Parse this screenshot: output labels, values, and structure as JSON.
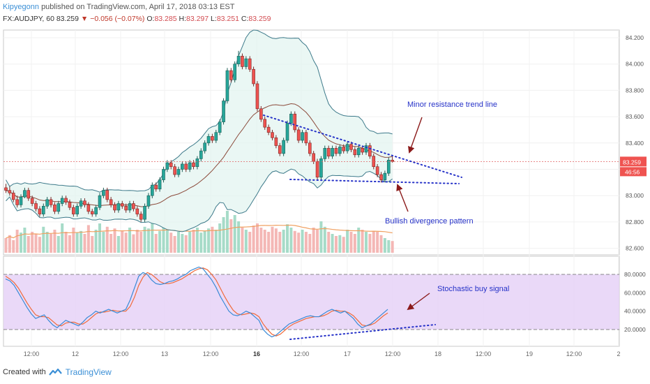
{
  "header": {
    "author": "Kipyegonn",
    "published": "published on TradingView.com, April 17, 2018 03:13 EST",
    "symbol": "FX:AUDJPY, 60",
    "last": "83.259",
    "change": "▼ −0.056 (−0.07%)",
    "o_label": "O:",
    "o": "83.285",
    "h_label": "H:",
    "h": "83.297",
    "l_label": "L:",
    "l": "83.251",
    "c_label": "C:",
    "c": "83.259"
  },
  "footer": {
    "created": "Created with",
    "brand": "TradingView"
  },
  "colors": {
    "up": "#26a69a",
    "down": "#ef5350",
    "bb_fill": "#e1f4ef",
    "stoch_fill": "#e6d2f7",
    "ann": "#2632c8",
    "arrow": "#8b1a1a"
  },
  "chart_data": [
    {
      "type": "candlestick",
      "symbol": "FX:AUDJPY",
      "timeframe": "60",
      "y_ticks": [
        "84.200",
        "84.000",
        "83.800",
        "83.600",
        "83.400",
        "83.200",
        "83.000",
        "82.800",
        "82.600"
      ],
      "ylim": [
        82.55,
        84.25
      ],
      "x_ticks": [
        "12:00",
        "12",
        "12:00",
        "13",
        "12:00",
        "16",
        "12:00",
        "17",
        "12:00",
        "18",
        "12:00",
        "19",
        "12:00",
        "2"
      ],
      "x_ticks_bold": [
        "16"
      ],
      "last_price_label": "83.259",
      "countdown_label": "46:56",
      "last_price": 83.259,
      "candles": [
        [
          83.06,
          83.04,
          83.09,
          83.02
        ],
        [
          83.04,
          83.02,
          83.07,
          83.0
        ],
        [
          83.02,
          82.97,
          83.04,
          82.95
        ],
        [
          82.97,
          82.93,
          83.0,
          82.91
        ],
        [
          82.93,
          82.99,
          83.01,
          82.91
        ],
        [
          82.99,
          83.04,
          83.06,
          82.98
        ],
        [
          83.04,
          82.98,
          83.06,
          82.96
        ],
        [
          82.98,
          82.94,
          83.0,
          82.92
        ],
        [
          82.94,
          82.9,
          82.96,
          82.88
        ],
        [
          82.9,
          82.86,
          82.92,
          82.84
        ],
        [
          82.86,
          82.92,
          82.94,
          82.84
        ],
        [
          82.92,
          82.97,
          82.99,
          82.9
        ],
        [
          82.97,
          82.93,
          82.99,
          82.91
        ],
        [
          82.93,
          82.88,
          82.95,
          82.86
        ],
        [
          82.88,
          82.94,
          82.96,
          82.86
        ],
        [
          82.94,
          82.98,
          83.0,
          82.92
        ],
        [
          82.98,
          82.95,
          83.0,
          82.93
        ],
        [
          82.95,
          82.91,
          82.97,
          82.89
        ],
        [
          82.91,
          82.86,
          82.93,
          82.84
        ],
        [
          82.86,
          82.92,
          82.94,
          82.84
        ],
        [
          82.92,
          82.96,
          82.98,
          82.9
        ],
        [
          82.96,
          82.93,
          82.98,
          82.91
        ],
        [
          82.93,
          82.88,
          82.95,
          82.86
        ],
        [
          82.88,
          82.86,
          82.9,
          82.84
        ],
        [
          82.86,
          82.91,
          82.93,
          82.84
        ],
        [
          82.91,
          83.0,
          83.02,
          82.89
        ],
        [
          83.0,
          83.04,
          83.06,
          82.98
        ],
        [
          83.04,
          82.97,
          83.06,
          82.95
        ],
        [
          82.97,
          82.93,
          82.99,
          82.91
        ],
        [
          82.93,
          82.89,
          82.95,
          82.87
        ],
        [
          82.89,
          82.94,
          82.96,
          82.87
        ],
        [
          82.94,
          82.92,
          82.96,
          82.9
        ],
        [
          82.92,
          82.89,
          82.94,
          82.87
        ],
        [
          82.89,
          82.94,
          82.96,
          82.87
        ],
        [
          82.94,
          82.9,
          82.96,
          82.88
        ],
        [
          82.9,
          82.86,
          82.92,
          82.84
        ],
        [
          82.86,
          82.82,
          82.88,
          82.8
        ],
        [
          82.82,
          82.92,
          82.94,
          82.8
        ],
        [
          82.92,
          83.0,
          83.02,
          82.9
        ],
        [
          83.0,
          83.08,
          83.1,
          82.98
        ],
        [
          83.08,
          83.05,
          83.1,
          83.03
        ],
        [
          83.05,
          83.12,
          83.14,
          83.03
        ],
        [
          83.12,
          83.2,
          83.22,
          83.1
        ],
        [
          83.2,
          83.25,
          83.27,
          83.18
        ],
        [
          83.25,
          83.22,
          83.27,
          83.2
        ],
        [
          83.22,
          83.16,
          83.24,
          83.14
        ],
        [
          83.16,
          83.2,
          83.22,
          83.14
        ],
        [
          83.2,
          83.24,
          83.26,
          83.18
        ],
        [
          83.24,
          83.2,
          83.26,
          83.18
        ],
        [
          83.2,
          83.25,
          83.27,
          83.18
        ],
        [
          83.25,
          83.22,
          83.27,
          83.2
        ],
        [
          83.22,
          83.28,
          83.3,
          83.2
        ],
        [
          83.28,
          83.34,
          83.36,
          83.26
        ],
        [
          83.34,
          83.4,
          83.42,
          83.32
        ],
        [
          83.4,
          83.45,
          83.47,
          83.38
        ],
        [
          83.45,
          83.42,
          83.47,
          83.4
        ],
        [
          83.42,
          83.48,
          83.5,
          83.4
        ],
        [
          83.48,
          83.56,
          83.58,
          83.46
        ],
        [
          83.56,
          83.72,
          83.74,
          83.54
        ],
        [
          83.72,
          83.95,
          83.97,
          83.7
        ],
        [
          83.95,
          83.88,
          83.97,
          83.86
        ],
        [
          83.88,
          84.0,
          84.02,
          83.86
        ],
        [
          84.0,
          84.06,
          84.1,
          83.98
        ],
        [
          84.06,
          83.98,
          84.08,
          83.96
        ],
        [
          83.98,
          84.04,
          84.06,
          83.96
        ],
        [
          84.04,
          83.96,
          84.06,
          83.94
        ],
        [
          83.96,
          83.85,
          83.98,
          83.83
        ],
        [
          83.85,
          83.66,
          83.87,
          83.64
        ],
        [
          83.66,
          83.58,
          83.68,
          83.56
        ],
        [
          83.58,
          83.52,
          83.6,
          83.5
        ],
        [
          83.52,
          83.48,
          83.54,
          83.46
        ],
        [
          83.48,
          83.44,
          83.5,
          83.42
        ],
        [
          83.44,
          83.38,
          83.46,
          83.36
        ],
        [
          83.38,
          83.32,
          83.4,
          83.3
        ],
        [
          83.32,
          83.42,
          83.44,
          83.3
        ],
        [
          83.42,
          83.55,
          83.57,
          83.4
        ],
        [
          83.55,
          83.62,
          83.64,
          83.53
        ],
        [
          83.62,
          83.5,
          83.64,
          83.48
        ],
        [
          83.5,
          83.42,
          83.52,
          83.4
        ],
        [
          83.42,
          83.48,
          83.5,
          83.4
        ],
        [
          83.48,
          83.4,
          83.5,
          83.38
        ],
        [
          83.4,
          83.32,
          83.42,
          83.3
        ],
        [
          83.32,
          83.26,
          83.34,
          83.24
        ],
        [
          83.26,
          83.14,
          83.28,
          83.12
        ],
        [
          83.14,
          83.28,
          83.3,
          83.12
        ],
        [
          83.28,
          83.36,
          83.38,
          83.26
        ],
        [
          83.36,
          83.3,
          83.38,
          83.28
        ],
        [
          83.3,
          83.36,
          83.38,
          83.28
        ],
        [
          83.36,
          83.32,
          83.38,
          83.3
        ],
        [
          83.32,
          83.37,
          83.39,
          83.3
        ],
        [
          83.37,
          83.34,
          83.39,
          83.32
        ],
        [
          83.34,
          83.39,
          83.41,
          83.32
        ],
        [
          83.39,
          83.35,
          83.41,
          83.33
        ],
        [
          83.35,
          83.31,
          83.37,
          83.29
        ],
        [
          83.31,
          83.36,
          83.38,
          83.29
        ],
        [
          83.36,
          83.33,
          83.38,
          83.31
        ],
        [
          83.33,
          83.38,
          83.4,
          83.31
        ],
        [
          83.38,
          83.3,
          83.4,
          83.28
        ],
        [
          83.3,
          83.22,
          83.32,
          83.2
        ],
        [
          83.22,
          83.16,
          83.24,
          83.14
        ],
        [
          83.16,
          83.12,
          83.18,
          83.1
        ],
        [
          83.12,
          83.17,
          83.19,
          83.1
        ],
        [
          83.17,
          83.27,
          83.29,
          83.15
        ],
        [
          83.27,
          83.259,
          83.297,
          83.251
        ]
      ],
      "volume": [
        0.35,
        0.42,
        0.3,
        0.55,
        0.48,
        0.6,
        0.4,
        0.5,
        0.45,
        0.38,
        0.62,
        0.5,
        0.45,
        0.55,
        0.4,
        0.7,
        0.5,
        0.42,
        0.6,
        0.48,
        0.52,
        0.45,
        0.66,
        0.4,
        0.55,
        0.7,
        0.5,
        0.62,
        0.45,
        0.58,
        0.4,
        0.52,
        0.48,
        0.6,
        0.44,
        0.55,
        0.5,
        0.62,
        0.58,
        0.7,
        0.45,
        0.52,
        0.6,
        0.55,
        0.48,
        0.4,
        0.5,
        0.45,
        0.42,
        0.5,
        0.55,
        0.6,
        0.48,
        0.52,
        0.58,
        0.62,
        0.55,
        0.7,
        0.85,
        1.0,
        0.8,
        0.9,
        0.75,
        0.6,
        0.55,
        0.5,
        0.65,
        0.7,
        0.6,
        0.55,
        0.5,
        0.62,
        0.58,
        0.5,
        0.55,
        0.68,
        0.6,
        0.52,
        0.48,
        0.55,
        0.5,
        0.45,
        0.6,
        0.55,
        0.75,
        0.62,
        0.5,
        0.45,
        0.4,
        0.42,
        0.38,
        0.55,
        0.5,
        0.45,
        0.6,
        0.55,
        0.5,
        0.45,
        0.52,
        0.5,
        0.42,
        0.35,
        0.3,
        0.28
      ]
    },
    {
      "type": "line",
      "name": "stochastic",
      "y_ticks": [
        "80.0000",
        "60.0000",
        "40.0000",
        "20.0000"
      ],
      "ylim": [
        0,
        100
      ],
      "overbought": 80,
      "oversold": 20,
      "k": [
        75,
        73,
        68,
        60,
        52,
        44,
        37,
        32,
        34,
        36,
        30,
        25,
        22,
        26,
        30,
        28,
        26,
        24,
        28,
        33,
        36,
        40,
        38,
        40,
        42,
        40,
        38,
        40,
        42,
        52,
        65,
        78,
        82,
        80,
        74,
        70,
        69,
        70,
        72,
        73,
        75,
        78,
        80,
        84,
        86,
        88,
        86,
        80,
        74,
        66,
        56,
        48,
        40,
        36,
        35,
        37,
        40,
        38,
        34,
        30,
        20,
        15,
        12,
        14,
        18,
        22,
        26,
        28,
        30,
        32,
        34,
        35,
        34,
        34,
        37,
        40,
        42,
        40,
        38,
        40,
        36,
        32,
        26,
        22,
        24,
        26,
        30,
        34,
        38,
        42
      ],
      "d": [
        78,
        75,
        71,
        65,
        57,
        49,
        42,
        36,
        34,
        34,
        33,
        29,
        25,
        24,
        27,
        28,
        28,
        26,
        26,
        29,
        33,
        37,
        39,
        39,
        40,
        41,
        40,
        40,
        40,
        45,
        55,
        68,
        77,
        82,
        80,
        76,
        72,
        70,
        70,
        71,
        73,
        75,
        78,
        81,
        84,
        86,
        87,
        85,
        80,
        74,
        65,
        56,
        48,
        41,
        37,
        36,
        37,
        38,
        37,
        34,
        26,
        20,
        15,
        13,
        15,
        19,
        23,
        26,
        28,
        30,
        32,
        33,
        34,
        34,
        35,
        37,
        40,
        41,
        40,
        40,
        38,
        35,
        30,
        25,
        24,
        25,
        27,
        31,
        35,
        38
      ]
    }
  ],
  "annotations": {
    "resistance": "Minor resistance trend line",
    "divergence": "Bullish divergence pattern",
    "stoch_buy": "Stochastic buy signal"
  }
}
